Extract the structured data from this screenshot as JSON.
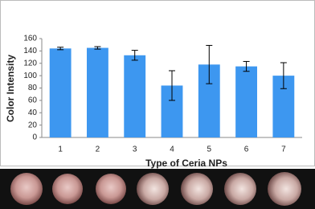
{
  "chart_data": {
    "type": "bar",
    "x_label": "Type of Ceria NPs",
    "y_label": "Color Intensity",
    "categories": [
      "1",
      "2",
      "3",
      "4",
      "5",
      "6",
      "7"
    ],
    "series": [
      {
        "color": "#3d97f0",
        "values": [
          144,
          145,
          133,
          84,
          118,
          115,
          100
        ],
        "errors": [
          2,
          2,
          8,
          24,
          31,
          8,
          21
        ]
      }
    ],
    "ylim": [
      0,
      160
    ],
    "yticks": [
      0,
      20,
      40,
      60,
      80,
      100,
      120,
      140,
      160
    ],
    "grid": false
  }
}
